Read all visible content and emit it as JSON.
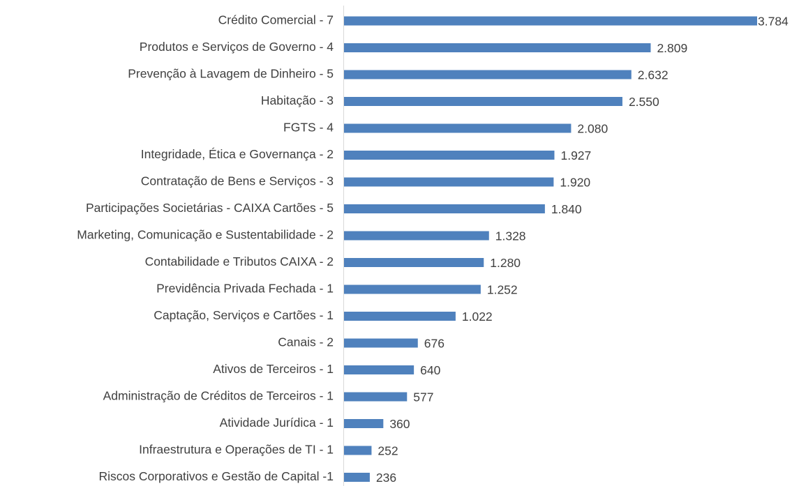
{
  "chart_data": {
    "type": "barh",
    "categories": [
      "Crédito Comercial - 7",
      "Produtos e Serviços de Governo - 4",
      "Prevenção à Lavagem de Dinheiro - 5",
      "Habitação - 3",
      "FGTS - 4",
      "Integridade, Ética e Governança - 2",
      "Contratação de Bens e Serviços - 3",
      "Participações Societárias - CAIXA Cartões - 5",
      "Marketing, Comunicação e Sustentabilidade - 2",
      "Contabilidade e Tributos CAIXA - 2",
      "Previdência Privada Fechada - 1",
      "Captação, Serviços e Cartões - 1",
      "Canais - 2",
      "Ativos de Terceiros - 1",
      "Administração de Créditos de Terceiros - 1",
      "Atividade Jurídica - 1",
      "Infraestrutura e Operações de TI - 1",
      "Riscos Corporativos e Gestão de Capital -1"
    ],
    "values": [
      3784,
      2809,
      2632,
      2550,
      2080,
      1927,
      1920,
      1840,
      1328,
      1280,
      1252,
      1022,
      676,
      640,
      577,
      360,
      252,
      236
    ],
    "value_labels": [
      "3.784",
      "2.809",
      "2.632",
      "2.550",
      "2.080",
      "1.927",
      "1.920",
      "1.840",
      "1.328",
      "1.280",
      "1.252",
      "1.022",
      "676",
      "640",
      "577",
      "360",
      "252",
      "236"
    ],
    "color": "#4f81bd"
  }
}
